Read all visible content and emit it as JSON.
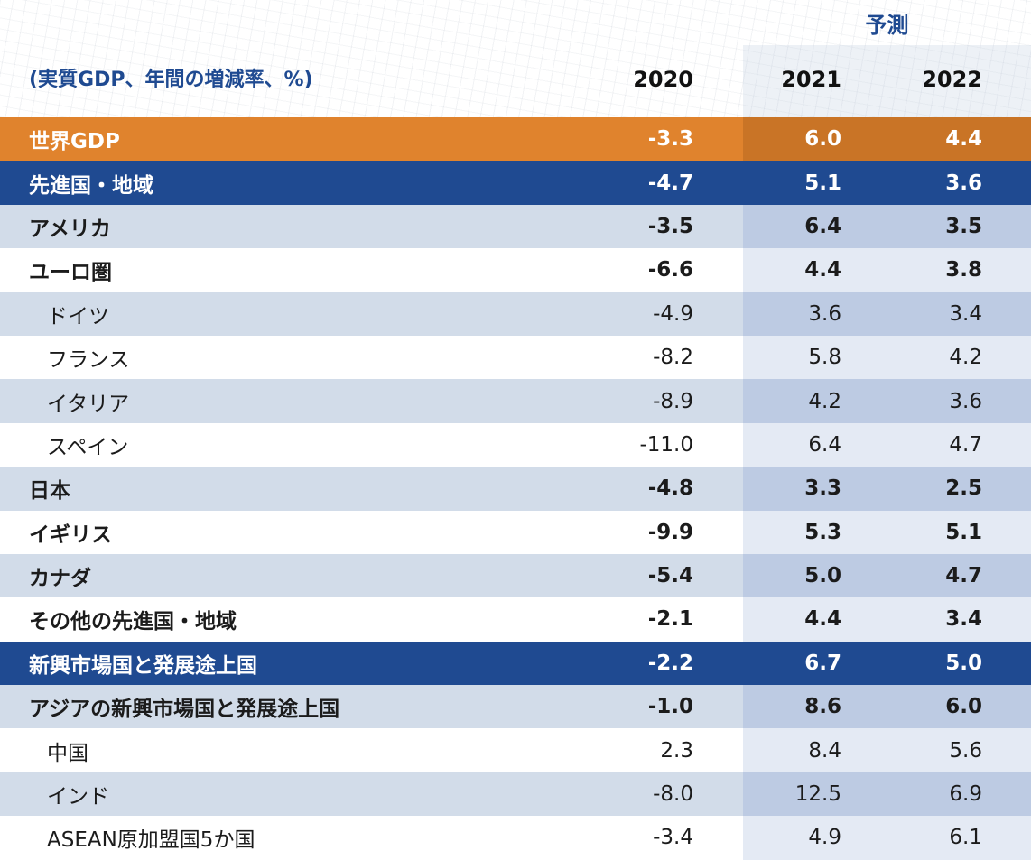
{
  "header": {
    "forecast_label": "予測",
    "unit_label": "(実質GDP、年間の増減率、%)",
    "years": [
      "2020",
      "2021",
      "2022"
    ]
  },
  "rows": [
    {
      "label": "世界GDP",
      "values": [
        "-3.3",
        "6.0",
        "4.4"
      ],
      "style": "orange"
    },
    {
      "label": "先進国・地域",
      "values": [
        "-4.7",
        "5.1",
        "3.6"
      ],
      "style": "navy"
    },
    {
      "label": "アメリカ",
      "values": [
        "-3.5",
        "6.4",
        "3.5"
      ],
      "style": "shade",
      "bold": true
    },
    {
      "label": "ユーロ圏",
      "values": [
        "-6.6",
        "4.4",
        "3.8"
      ],
      "style": "white",
      "bold": true
    },
    {
      "label": "ドイツ",
      "values": [
        "-4.9",
        "3.6",
        "3.4"
      ],
      "style": "shade",
      "sub": true
    },
    {
      "label": "フランス",
      "values": [
        "-8.2",
        "5.8",
        "4.2"
      ],
      "style": "white",
      "sub": true
    },
    {
      "label": "イタリア",
      "values": [
        "-8.9",
        "4.2",
        "3.6"
      ],
      "style": "shade",
      "sub": true
    },
    {
      "label": "スペイン",
      "values": [
        "-11.0",
        "6.4",
        "4.7"
      ],
      "style": "white",
      "sub": true
    },
    {
      "label": "日本",
      "values": [
        "-4.8",
        "3.3",
        "2.5"
      ],
      "style": "shade",
      "bold": true
    },
    {
      "label": "イギリス",
      "values": [
        "-9.9",
        "5.3",
        "5.1"
      ],
      "style": "white",
      "bold": true
    },
    {
      "label": "カナダ",
      "values": [
        "-5.4",
        "5.0",
        "4.7"
      ],
      "style": "shade",
      "bold": true
    },
    {
      "label": "その他の先進国・地域",
      "values": [
        "-2.1",
        "4.4",
        "3.4"
      ],
      "style": "white",
      "bold": true
    },
    {
      "label": "新興市場国と発展途上国",
      "values": [
        "-2.2",
        "6.7",
        "5.0"
      ],
      "style": "navy"
    },
    {
      "label": "アジアの新興市場国と発展途上国",
      "values": [
        "-1.0",
        "8.6",
        "6.0"
      ],
      "style": "shade",
      "bold": true
    },
    {
      "label": "中国",
      "values": [
        "2.3",
        "8.4",
        "5.6"
      ],
      "style": "white",
      "sub": true
    },
    {
      "label": "インド",
      "values": [
        "-8.0",
        "12.5",
        "6.9"
      ],
      "style": "shade",
      "sub": true
    },
    {
      "label": "ASEAN原加盟国5か国",
      "values": [
        "-3.4",
        "4.9",
        "6.1"
      ],
      "style": "white",
      "sub": true
    }
  ],
  "colors": {
    "navy": "#1f4a91",
    "orange": "#e0832d",
    "row_shade": "#d2dce9",
    "forecast_shade": "#bdcbe3"
  }
}
